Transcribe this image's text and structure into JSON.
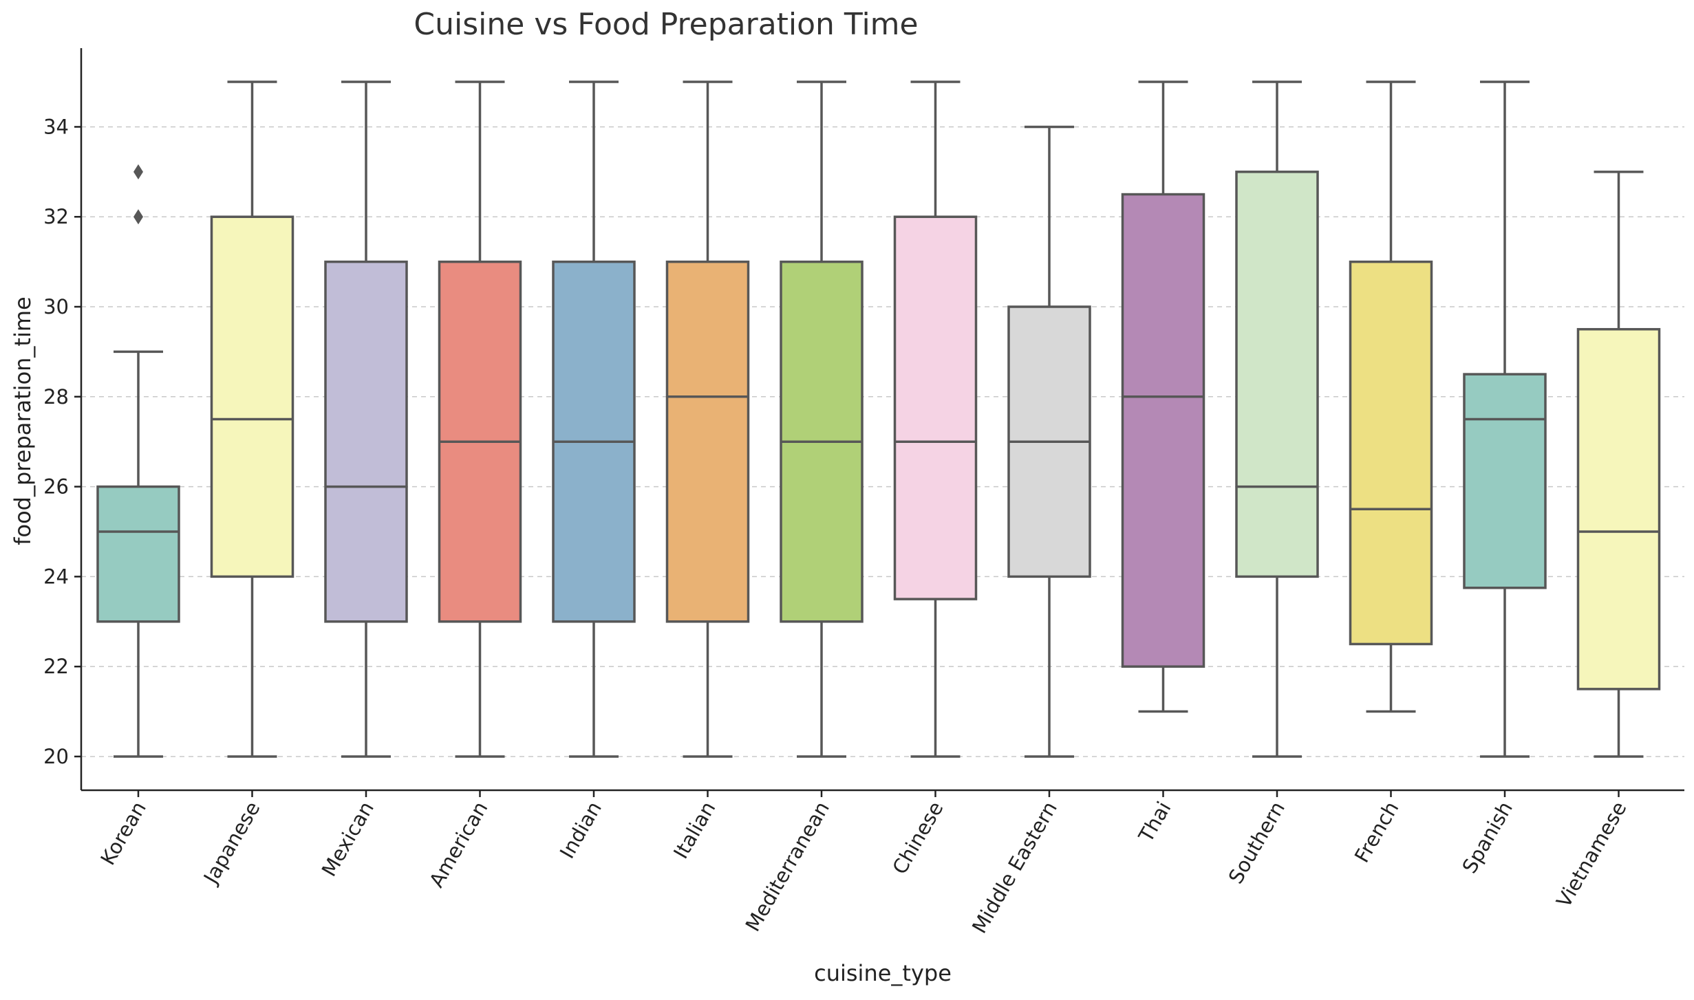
{
  "chart_data": {
    "type": "boxplot",
    "title": "Cuisine vs Food Preparation Time",
    "xlabel": "cuisine_type",
    "ylabel": "food_preparation_time",
    "ylim": [
      19.25,
      35.75
    ],
    "yticks": [
      20,
      22,
      24,
      26,
      28,
      30,
      32,
      34
    ],
    "grid": "y-dashed",
    "categories": [
      "Korean",
      "Japanese",
      "Mexican",
      "American",
      "Indian",
      "Italian",
      "Mediterranean",
      "Chinese",
      "Middle Eastern",
      "Thai",
      "Southern",
      "French",
      "Spanish",
      "Vietnamese"
    ],
    "boxes": [
      {
        "category": "Korean",
        "whislo": 20,
        "q1": 23,
        "med": 25,
        "q3": 26,
        "whishi": 29,
        "fliers": [
          32,
          33
        ],
        "color": "#96cbc1"
      },
      {
        "category": "Japanese",
        "whislo": 20,
        "q1": 24,
        "med": 27.5,
        "q3": 32,
        "whishi": 35,
        "fliers": [],
        "color": "#f6f6bb"
      },
      {
        "category": "Mexican",
        "whislo": 20,
        "q1": 23,
        "med": 26,
        "q3": 31,
        "whishi": 35,
        "fliers": [],
        "color": "#c1bdd7"
      },
      {
        "category": "American",
        "whislo": 20,
        "q1": 23,
        "med": 27,
        "q3": 31,
        "whishi": 35,
        "fliers": [],
        "color": "#e98c80"
      },
      {
        "category": "Indian",
        "whislo": 20,
        "q1": 23,
        "med": 27,
        "q3": 31,
        "whishi": 35,
        "fliers": [],
        "color": "#8bb1cb"
      },
      {
        "category": "Italian",
        "whislo": 20,
        "q1": 23,
        "med": 28,
        "q3": 31,
        "whishi": 35,
        "fliers": [],
        "color": "#e9b274"
      },
      {
        "category": "Mediterranean",
        "whislo": 20,
        "q1": 23,
        "med": 27,
        "q3": 31,
        "whishi": 35,
        "fliers": [],
        "color": "#b0d077"
      },
      {
        "category": "Chinese",
        "whislo": 20,
        "q1": 23.5,
        "med": 27,
        "q3": 32,
        "whishi": 35,
        "fliers": [],
        "color": "#f5d3e4"
      },
      {
        "category": "Middle Eastern",
        "whislo": 20,
        "q1": 24,
        "med": 27,
        "q3": 30,
        "whishi": 34,
        "fliers": [],
        "color": "#d8d8d8"
      },
      {
        "category": "Thai",
        "whislo": 21,
        "q1": 22,
        "med": 28,
        "q3": 32.5,
        "whishi": 35,
        "fliers": [],
        "color": "#b489b5"
      },
      {
        "category": "Southern",
        "whislo": 20,
        "q1": 24,
        "med": 26,
        "q3": 33,
        "whishi": 35,
        "fliers": [],
        "color": "#d0e6c8"
      },
      {
        "category": "French",
        "whislo": 21,
        "q1": 22.5,
        "med": 25.5,
        "q3": 31,
        "whishi": 35,
        "fliers": [],
        "color": "#ede083"
      },
      {
        "category": "Spanish",
        "whislo": 20,
        "q1": 23.75,
        "med": 27.5,
        "q3": 28.5,
        "whishi": 35,
        "fliers": [],
        "color": "#96cbc1"
      },
      {
        "category": "Vietnamese",
        "whislo": 20,
        "q1": 21.5,
        "med": 25,
        "q3": 29.5,
        "whishi": 33,
        "fliers": [],
        "color": "#f6f6bb"
      }
    ]
  }
}
